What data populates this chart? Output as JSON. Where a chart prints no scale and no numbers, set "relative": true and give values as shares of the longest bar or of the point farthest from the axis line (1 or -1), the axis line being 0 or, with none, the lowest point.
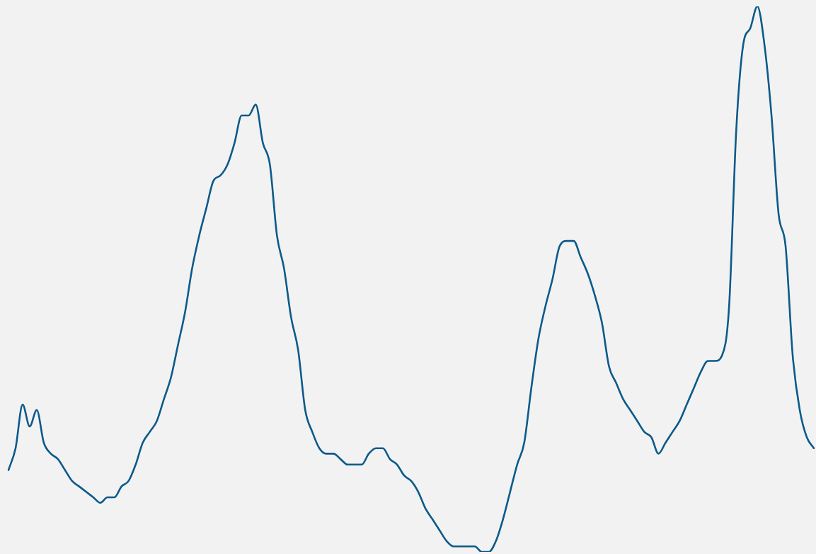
{
  "chart_data": {
    "type": "line",
    "relative": true,
    "color": "#0b5a8a",
    "marker": "none",
    "categories": [
      null,
      null,
      null,
      null,
      null,
      null,
      null,
      null,
      null,
      null,
      null,
      null,
      null,
      null,
      null,
      null,
      null,
      null,
      null,
      null,
      null,
      null,
      null,
      null,
      null,
      null,
      null,
      null,
      null,
      null,
      null,
      null,
      null,
      null,
      null,
      null,
      null,
      null,
      null,
      null,
      null,
      null,
      null,
      null,
      null,
      null,
      null,
      null,
      null,
      null,
      null,
      null,
      null,
      null,
      null,
      null,
      null,
      null,
      null,
      null,
      null,
      null,
      null,
      null,
      null,
      null,
      null,
      null,
      null,
      null,
      null,
      null,
      null,
      null,
      null,
      null,
      null,
      null,
      null,
      null,
      null,
      null,
      null,
      null,
      null,
      null,
      null,
      null,
      null,
      null,
      null,
      null,
      null,
      null,
      null,
      null,
      null,
      null,
      null,
      null,
      null,
      null,
      null,
      null,
      null,
      null,
      null,
      null,
      null,
      null,
      null,
      null,
      null,
      null,
      null
    ],
    "values": [
      0.15,
      0.19,
      0.27,
      0.23,
      0.26,
      0.2,
      0.18,
      0.17,
      0.15,
      0.13,
      0.12,
      0.11,
      0.1,
      0.09,
      0.1,
      0.1,
      0.12,
      0.13,
      0.16,
      0.2,
      0.22,
      0.24,
      0.28,
      0.32,
      0.38,
      0.44,
      0.52,
      0.58,
      0.63,
      0.68,
      0.69,
      0.71,
      0.75,
      0.8,
      0.8,
      0.82,
      0.75,
      0.71,
      0.58,
      0.52,
      0.43,
      0.37,
      0.26,
      0.22,
      0.19,
      0.18,
      0.18,
      0.17,
      0.16,
      0.16,
      0.16,
      0.18,
      0.19,
      0.19,
      0.17,
      0.16,
      0.14,
      0.13,
      0.11,
      0.08,
      0.06,
      0.04,
      0.02,
      0.01,
      0.01,
      0.01,
      0.01,
      0,
      0,
      0.02,
      0.06,
      0.11,
      0.16,
      0.2,
      0.3,
      0.39,
      0.45,
      0.5,
      0.56,
      0.57,
      0.57,
      0.54,
      0.51,
      0.47,
      0.42,
      0.34,
      0.31,
      0.28,
      0.26,
      0.24,
      0.22,
      0.21,
      0.18,
      0.2,
      0.22,
      0.24,
      0.27,
      0.3,
      0.33,
      0.35,
      0.35,
      0.36,
      0.45,
      0.77,
      0.93,
      0.96,
      1,
      0.93,
      0.8,
      0.62,
      0.56,
      0.36,
      0.26,
      0.21,
      0.19
    ]
  }
}
